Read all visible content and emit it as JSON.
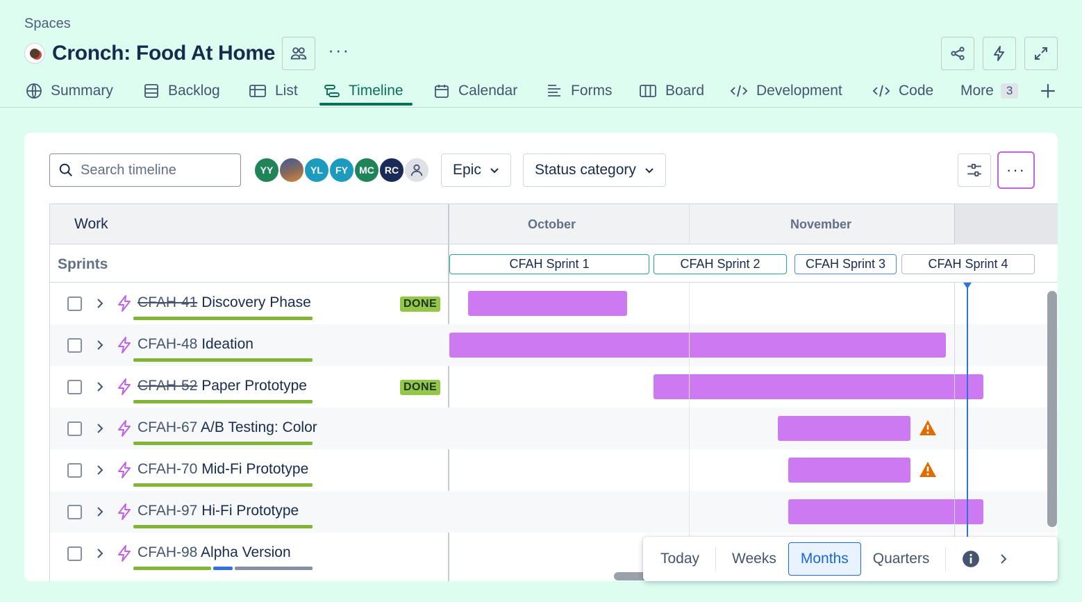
{
  "breadcrumb": "Spaces",
  "project": {
    "title": "Cronch: Food At Home",
    "more": "···"
  },
  "tabs": [
    {
      "label": "Summary",
      "icon": "globe-icon"
    },
    {
      "label": "Backlog",
      "icon": "backlog-icon"
    },
    {
      "label": "List",
      "icon": "list-icon"
    },
    {
      "label": "Timeline",
      "icon": "timeline-icon",
      "active": true
    },
    {
      "label": "Calendar",
      "icon": "calendar-icon"
    },
    {
      "label": "Forms",
      "icon": "forms-icon"
    },
    {
      "label": "Board",
      "icon": "board-icon"
    },
    {
      "label": "Development",
      "icon": "code-icon"
    },
    {
      "label": "Code",
      "icon": "code-icon"
    },
    {
      "label": "More",
      "count": "3"
    }
  ],
  "toolbar": {
    "search_placeholder": "Search timeline",
    "avatars": [
      {
        "initials": "YY",
        "color": "#1f845a"
      },
      {
        "initials": "",
        "color": "#5b6b8a"
      },
      {
        "initials": "YL",
        "color": "#1d9bbf"
      },
      {
        "initials": "FY",
        "color": "#1d9bbf"
      },
      {
        "initials": "MC",
        "color": "#1f845a"
      },
      {
        "initials": "RC",
        "color": "#1b2a56"
      },
      {
        "initials": "",
        "color": "#dfe1e6"
      }
    ],
    "epic_label": "Epic",
    "status_label": "Status category",
    "more": "···"
  },
  "timeline": {
    "work_header": "Work",
    "months": [
      "October",
      "November"
    ],
    "sprints_label": "Sprints",
    "sprints": [
      "CFAH Sprint 1",
      "CFAH Sprint 2",
      "CFAH Sprint 3",
      "CFAH Sprint 4"
    ],
    "rows": [
      {
        "key": "CFAH-41",
        "title": "Discovery Phase",
        "done": true,
        "status": "DONE",
        "warning": false
      },
      {
        "key": "CFAH-48",
        "title": "Ideation",
        "done": false,
        "status": "",
        "warning": false
      },
      {
        "key": "CFAH-52",
        "title": "Paper Prototype",
        "done": true,
        "status": "DONE",
        "warning": false
      },
      {
        "key": "CFAH-67",
        "title": "A/B Testing: Color",
        "done": false,
        "status": "",
        "warning": true
      },
      {
        "key": "CFAH-70",
        "title": "Mid-Fi Prototype",
        "done": false,
        "status": "",
        "warning": true
      },
      {
        "key": "CFAH-97",
        "title": "Hi-Fi Prototype",
        "done": false,
        "status": "",
        "warning": false
      },
      {
        "key": "CFAH-98",
        "title": "Alpha Version",
        "done": false,
        "status": "",
        "warning": false
      }
    ],
    "bar_color": "#cd79f2",
    "progress_colors": {
      "done": "#82b536",
      "in_progress": "#2f72de",
      "todo": "#8590a2"
    }
  },
  "zoom": {
    "options": [
      "Today",
      "Weeks",
      "Months",
      "Quarters"
    ],
    "selected": "Months"
  }
}
